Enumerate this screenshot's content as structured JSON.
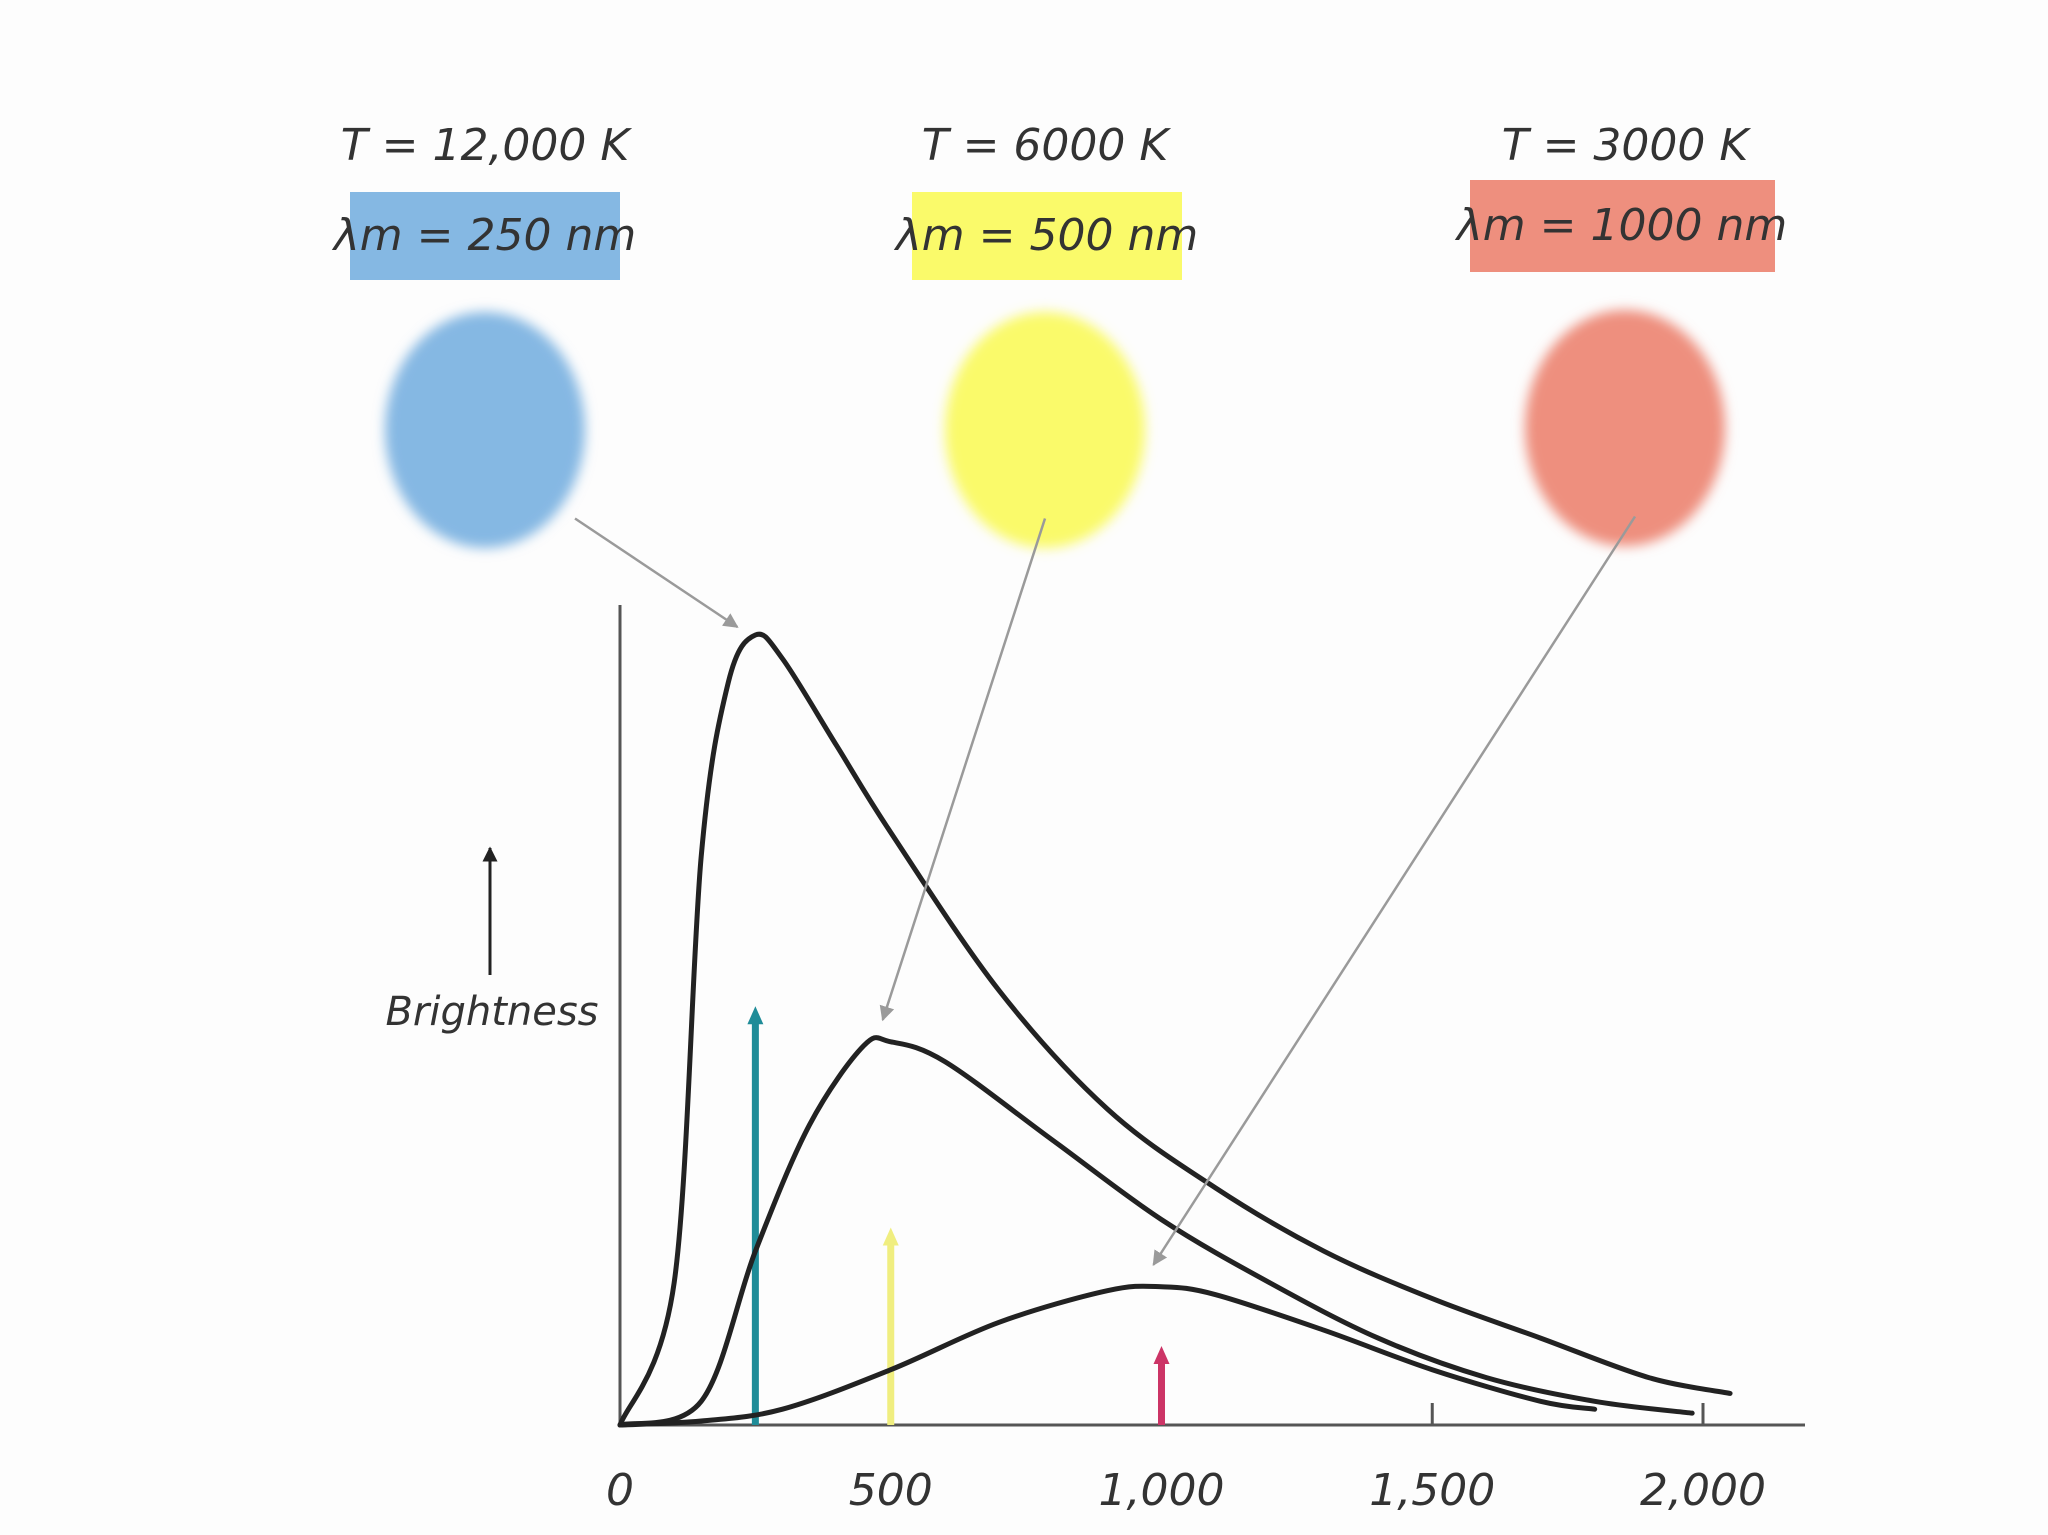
{
  "chart_data": {
    "type": "line",
    "xlabel": "",
    "ylabel": "Brightness",
    "xlim": [
      0,
      2200
    ],
    "ylim": [
      0,
      100
    ],
    "x_ticks": [
      "0",
      "500",
      "1,000",
      "1,500",
      "2,000"
    ],
    "x_tick_values": [
      0,
      500,
      1000,
      1500,
      2000
    ],
    "series": [
      {
        "temperature_label": "T = 12,000 K",
        "lambda_label": "λm = 250 nm",
        "peak_wavelength": 250,
        "color": "#85b8e3",
        "marker_color": "#1f8c98",
        "marker_height": 53,
        "x": [
          0,
          100,
          150,
          200,
          250,
          300,
          400,
          500,
          700,
          900,
          1100,
          1300,
          1500,
          1700,
          1900,
          2050
        ],
        "y": [
          0,
          18,
          72,
          94,
          100,
          97,
          86,
          75,
          55,
          40,
          30,
          22,
          16,
          11,
          6,
          4
        ]
      },
      {
        "temperature_label": "T = 6000 K",
        "lambda_label": "λm = 500 nm",
        "peak_wavelength": 500,
        "color": "#fafa6a",
        "marker_color": "#f0ee80",
        "marker_height": 25,
        "x": [
          0,
          150,
          250,
          350,
          450,
          500,
          600,
          800,
          1000,
          1200,
          1400,
          1600,
          1800,
          1980
        ],
        "y": [
          0,
          3,
          22,
          38,
          48,
          48.5,
          46,
          36,
          26,
          18,
          11,
          6,
          3,
          1.5
        ]
      },
      {
        "temperature_label": "T = 3000 K",
        "lambda_label": "λm = 1000 nm",
        "peak_wavelength": 1000,
        "color": "#ee8f7e",
        "marker_color": "#cc3466",
        "marker_height": 10,
        "x": [
          0,
          150,
          300,
          500,
          700,
          900,
          1000,
          1100,
          1300,
          1500,
          1700,
          1800
        ],
        "y": [
          0,
          0.5,
          2,
          7,
          13,
          17,
          17.5,
          16.5,
          12,
          7,
          3,
          2
        ]
      }
    ]
  }
}
